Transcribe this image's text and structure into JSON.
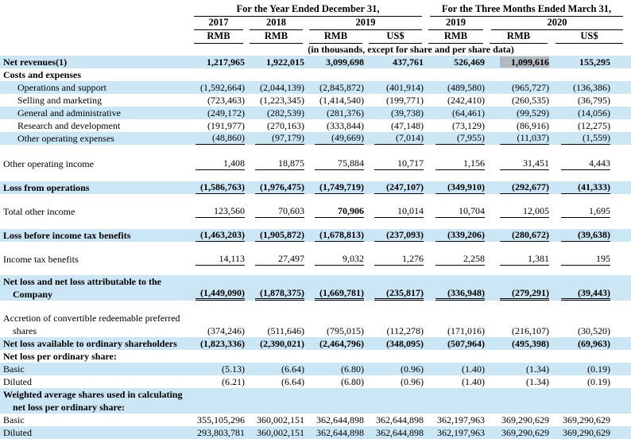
{
  "page": {
    "background": "#ffffff",
    "stripe_color": "#cbe7f5",
    "highlight_color": "#b2bac0",
    "text_color": "#000000",
    "rule_color": "#000000"
  },
  "header": {
    "groups": [
      {
        "label": "For the Year Ended December 31,",
        "span_columns": 4
      },
      {
        "label": "For the Three Months Ended March 31,",
        "span_columns": 3
      }
    ],
    "years": [
      {
        "label": "2017",
        "span_columns": 1
      },
      {
        "label": "2018",
        "span_columns": 1
      },
      {
        "label": "2019",
        "span_columns": 2
      },
      {
        "label": "2019",
        "span_columns": 1
      },
      {
        "label": "2020",
        "span_columns": 2
      }
    ],
    "currencies": [
      "RMB",
      "RMB",
      "RMB",
      "US$",
      "RMB",
      "RMB",
      "US$"
    ],
    "note": "(in thousands, except for share and per share data)"
  },
  "rows": [
    {
      "label": "Net revenues(1)",
      "bold": true,
      "bg": "blue",
      "values": [
        "1,217,965",
        "1,922,015",
        "3,099,698",
        "437,761",
        "526,469",
        "1,099,616",
        "155,295"
      ],
      "underline": "none",
      "highlight_value_index": 5
    },
    {
      "label": "Costs and expenses",
      "bold": true,
      "bg": "white",
      "values": [
        "",
        "",
        "",
        "",
        "",
        "",
        ""
      ]
    },
    {
      "label": "Operations and support",
      "indent": 1,
      "bg": "blue",
      "values": [
        "(1,592,664)",
        "(2,044,139)",
        "(2,845,872)",
        "(401,914)",
        "(489,580)",
        "(965,727)",
        "(136,386)"
      ]
    },
    {
      "label": "Selling and marketing",
      "indent": 1,
      "bg": "white",
      "values": [
        "(723,463)",
        "(1,223,345)",
        "(1,414,540)",
        "(199,771)",
        "(242,410)",
        "(260,535)",
        "(36,795)"
      ]
    },
    {
      "label": "General and administrative",
      "indent": 1,
      "bg": "blue",
      "values": [
        "(249,172)",
        "(282,539)",
        "(281,376)",
        "(39,738)",
        "(64,461)",
        "(99,529)",
        "(14,056)"
      ]
    },
    {
      "label": "Research and development",
      "indent": 1,
      "bg": "white",
      "values": [
        "(191,977)",
        "(270,163)",
        "(333,844)",
        "(47,148)",
        "(73,129)",
        "(86,916)",
        "(12,275)"
      ]
    },
    {
      "label": "Other operating expenses",
      "indent": 1,
      "bg": "blue",
      "values": [
        "(48,860)",
        "(97,179)",
        "(49,669)",
        "(7,014)",
        "(7,955)",
        "(11,037)",
        "(1,559)"
      ],
      "underline": "single"
    },
    {
      "type": "spacer",
      "h": 16
    },
    {
      "label": "Other operating income",
      "bg": "white",
      "values": [
        "1,408",
        "18,875",
        "75,884",
        "10,717",
        "1,156",
        "31,451",
        "4,443"
      ],
      "underline": "single"
    },
    {
      "type": "spacer",
      "h": 14
    },
    {
      "label": "Loss from operations",
      "bold": true,
      "bg": "blue",
      "values": [
        "(1,586,763)",
        "(1,976,475)",
        "(1,749,719)",
        "(247,107)",
        "(349,910)",
        "(292,677)",
        "(41,333)"
      ],
      "underline": "single"
    },
    {
      "type": "spacer",
      "h": 14
    },
    {
      "label": "Total other income",
      "bg": "white",
      "values": [
        "123,560",
        "70,603",
        "70,906",
        "10,014",
        "10,704",
        "12,005",
        "1,695"
      ],
      "underline": "single",
      "bold_value_index": 2
    },
    {
      "type": "spacer",
      "h": 14
    },
    {
      "label": "Loss before income tax benefits",
      "bold": true,
      "bg": "blue",
      "values": [
        "(1,463,203)",
        "(1,905,872)",
        "(1,678,813)",
        "(237,093)",
        "(339,206)",
        "(280,672)",
        "(39,638)"
      ],
      "underline": "single"
    },
    {
      "type": "spacer",
      "h": 14
    },
    {
      "label": "Income tax benefits",
      "bg": "white",
      "values": [
        "14,113",
        "27,497",
        "9,032",
        "1,276",
        "2,258",
        "1,381",
        "195"
      ],
      "underline": "single"
    },
    {
      "type": "spacer",
      "h": 12
    },
    {
      "label": "Net loss and net loss attributable to the",
      "label2": "Company",
      "bold": true,
      "bg": "blue",
      "values": [
        "(1,449,090)",
        "(1,878,375)",
        "(1,669,781)",
        "(235,817)",
        "(336,948)",
        "(279,291)",
        "(39,443)"
      ],
      "underline": "double"
    },
    {
      "type": "spacer",
      "h": 14
    },
    {
      "label": "Accretion of convertible redeemable preferred",
      "label2": "shares",
      "bg": "white",
      "values": [
        "(374,246)",
        "(511,646)",
        "(795,015)",
        "(112,278)",
        "(171,016)",
        "(216,107)",
        "(30,520)"
      ]
    },
    {
      "label": "Net loss available to ordinary shareholders",
      "bold": true,
      "bg": "blue",
      "values": [
        "(1,823,336)",
        "(2,390,021)",
        "(2,464,796)",
        "(348,095)",
        "(507,964)",
        "(495,398)",
        "(69,963)"
      ]
    },
    {
      "label": "Net loss per ordinary share:",
      "bold": true,
      "bg": "white",
      "values": [
        "",
        "",
        "",
        "",
        "",
        "",
        ""
      ]
    },
    {
      "label": "Basic",
      "bg": "blue",
      "values": [
        "(5.13)",
        "(6.64)",
        "(6.80)",
        "(0.96)",
        "(1.40)",
        "(1.34)",
        "(0.19)"
      ]
    },
    {
      "label": "Diluted",
      "bg": "white",
      "values": [
        "(6.21)",
        "(6.64)",
        "(6.80)",
        "(0.96)",
        "(1.40)",
        "(1.34)",
        "(0.19)"
      ]
    },
    {
      "label": "Weighted average shares used in calculating",
      "label2": "net loss per ordinary share:",
      "bold": true,
      "bg": "blue",
      "values": [
        "",
        "",
        "",
        "",
        "",
        "",
        ""
      ]
    },
    {
      "label": "Basic",
      "bg": "white",
      "values": [
        "355,105,296",
        "360,002,151",
        "362,644,898",
        "362,644,898",
        "362,197,963",
        "369,290,629",
        "369,290,629"
      ]
    },
    {
      "label": "Diluted",
      "bg": "blue",
      "values": [
        "293,803,781",
        "360,002,151",
        "362,644,898",
        "362,644,898",
        "362,197,963",
        "369,290,629",
        "369,290,629"
      ]
    }
  ]
}
